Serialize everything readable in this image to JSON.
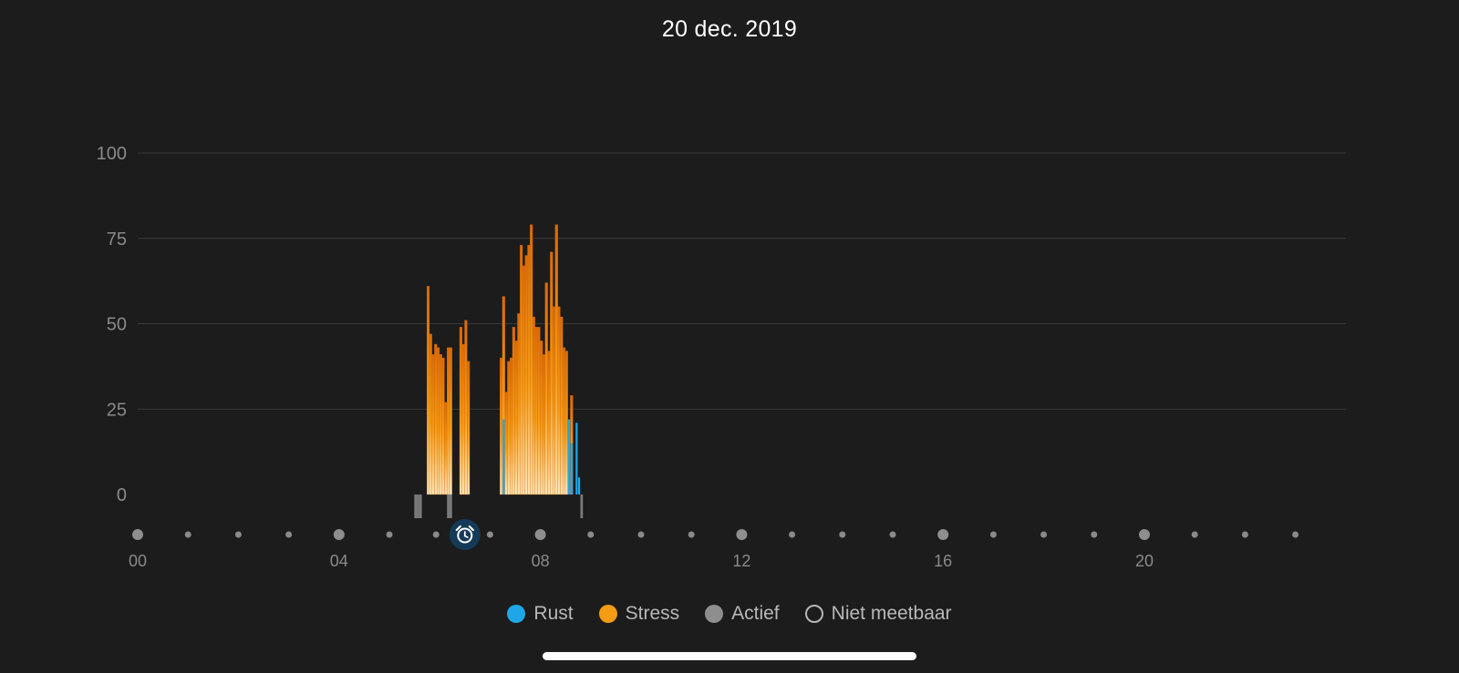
{
  "header": {
    "date_title": "20 dec. 2019"
  },
  "colors": {
    "background": "#1c1c1c",
    "rest": "#1ea7e8",
    "stress_top": "#d96a08",
    "stress_mid": "#f59b14",
    "stress_bottom": "#ffe6b8",
    "active": "#7a7a7a",
    "grid": "#3a3a3a",
    "axis_text": "#8a8a8a"
  },
  "legend": [
    {
      "label": "Rust",
      "style": "rest"
    },
    {
      "label": "Stress",
      "style": "stress"
    },
    {
      "label": "Actief",
      "style": "active"
    },
    {
      "label": "Niet meetbaar",
      "style": "unmeasurable"
    }
  ],
  "chart_data": {
    "type": "bar",
    "title": "20 dec. 2019",
    "xlabel": "",
    "ylabel": "",
    "ylim": [
      0,
      100
    ],
    "y_ticks": [
      "100",
      "75",
      "50",
      "25",
      "0"
    ],
    "x_range_hours": [
      0,
      24
    ],
    "x_tick_labels": [
      {
        "hour": 0,
        "label": "00"
      },
      {
        "hour": 4,
        "label": "04"
      },
      {
        "hour": 8,
        "label": "08"
      },
      {
        "hour": 12,
        "label": "12"
      },
      {
        "hour": 16,
        "label": "16"
      },
      {
        "hour": 20,
        "label": "20"
      }
    ],
    "alarm_marker_hour": 6.5,
    "grid": true,
    "legend_position": "bottom-center",
    "series": [
      {
        "name": "Stress",
        "bar_width_hours": 0.05,
        "points": [
          [
            5.77,
            61
          ],
          [
            5.82,
            47
          ],
          [
            5.87,
            41
          ],
          [
            5.92,
            44
          ],
          [
            5.97,
            43
          ],
          [
            6.02,
            41
          ],
          [
            6.07,
            40
          ],
          [
            6.12,
            27
          ],
          [
            6.17,
            43
          ],
          [
            6.22,
            43
          ],
          [
            6.42,
            49
          ],
          [
            6.47,
            44
          ],
          [
            6.52,
            51
          ],
          [
            6.57,
            39
          ],
          [
            7.22,
            40
          ],
          [
            7.27,
            58
          ],
          [
            7.32,
            30
          ],
          [
            7.37,
            39
          ],
          [
            7.42,
            40
          ],
          [
            7.47,
            49
          ],
          [
            7.52,
            45
          ],
          [
            7.57,
            53
          ],
          [
            7.62,
            73
          ],
          [
            7.67,
            67
          ],
          [
            7.72,
            70
          ],
          [
            7.77,
            73
          ],
          [
            7.82,
            79
          ],
          [
            7.87,
            52
          ],
          [
            7.92,
            49
          ],
          [
            7.97,
            49
          ],
          [
            8.02,
            45
          ],
          [
            8.07,
            41
          ],
          [
            8.12,
            62
          ],
          [
            8.17,
            42
          ],
          [
            8.22,
            71
          ],
          [
            8.27,
            55
          ],
          [
            8.32,
            79
          ],
          [
            8.37,
            55
          ],
          [
            8.42,
            52
          ],
          [
            8.47,
            43
          ],
          [
            8.52,
            42
          ],
          [
            8.62,
            29
          ]
        ]
      },
      {
        "name": "Rust",
        "bar_width_hours": 0.04,
        "points": [
          [
            7.27,
            22
          ],
          [
            8.57,
            22
          ],
          [
            8.62,
            15
          ],
          [
            8.72,
            21
          ],
          [
            8.77,
            5
          ]
        ]
      },
      {
        "name": "Actief",
        "bar_width_hours": 0.05,
        "points": [
          [
            5.52,
            1
          ],
          [
            5.57,
            1
          ],
          [
            5.62,
            1
          ],
          [
            6.17,
            1
          ],
          [
            6.22,
            1
          ],
          [
            8.82,
            1
          ]
        ]
      }
    ]
  }
}
